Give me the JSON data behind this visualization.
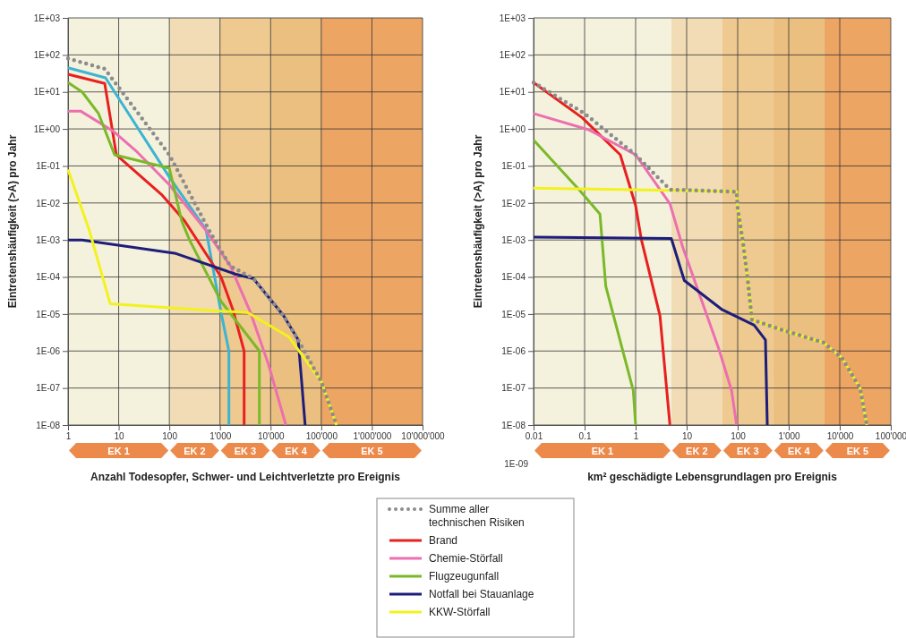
{
  "chart_data": [
    {
      "type": "line",
      "log": "xy",
      "grid": true,
      "legend": "bottom",
      "xlabel": "Anzahl Todesopfer, Schwer- und Leichtverletzte pro Ereignis",
      "ylabel": "Eintretenshäufigkeit (>A) pro Jahr",
      "xlim": [
        1,
        10000000
      ],
      "xticks": [
        1,
        10,
        100,
        {
          "value": 1000,
          "label": "1'000"
        },
        {
          "value": 10000,
          "label": "10'000"
        },
        {
          "value": 100000,
          "label": "100'000"
        },
        {
          "value": 1000000,
          "label": "1'000'000"
        },
        {
          "value": 10000000,
          "label": "10'000'000"
        }
      ],
      "ylim": [
        1e-08,
        1000
      ],
      "yticks": [
        {
          "value": 1000,
          "label": "1E+03"
        },
        {
          "value": 100,
          "label": "1E+02"
        },
        {
          "value": 10,
          "label": "1E+01"
        },
        {
          "value": 1,
          "label": "1E+00"
        },
        {
          "value": 0.1,
          "label": "1E-01"
        },
        {
          "value": 0.01,
          "label": "1E-02"
        },
        {
          "value": 0.001,
          "label": "1E-03"
        },
        {
          "value": 0.0001,
          "label": "1E-04"
        },
        {
          "value": 1e-05,
          "label": "1E-05"
        },
        {
          "value": 1e-06,
          "label": "1E-06"
        },
        {
          "value": 1e-07,
          "label": "1E-07"
        },
        {
          "value": 1e-08,
          "label": "1E-08"
        }
      ],
      "bands": [
        {
          "axis": "x",
          "from": 1,
          "to": 100,
          "label": "EK 1",
          "color": "#f4f2dd"
        },
        {
          "axis": "x",
          "from": 100,
          "to": 1000,
          "label": "EK 2",
          "color": "#f2dcb6"
        },
        {
          "axis": "x",
          "from": 1000,
          "to": 10000,
          "label": "EK 3",
          "color": "#eec990"
        },
        {
          "axis": "x",
          "from": 10000,
          "to": 100000,
          "label": "EK 4",
          "color": "#ebbf7f"
        },
        {
          "axis": "x",
          "from": 100000,
          "to": 10000000,
          "label": "EK 5",
          "color": "#eda563"
        }
      ],
      "series": [
        {
          "color": "#3cb4d2",
          "x": [
            1,
            5.5,
            100,
            530,
            1050,
            1500,
            1500
          ],
          "values": [
            45,
            24,
            0.05,
            0.0019,
            1.1e-05,
            1e-06,
            1e-08
          ]
        },
        {
          "name": "Brand",
          "color": "#e8201f",
          "x": [
            1,
            5.3,
            9,
            70,
            200,
            1050,
            1800,
            3000,
            3000
          ],
          "values": [
            30,
            17,
            0.2,
            0.017,
            0.0033,
            0.0001,
            1.3e-05,
            1e-06,
            1e-08
          ]
        },
        {
          "name": "Chemie-Störfall",
          "color": "#ec6fb0",
          "x": [
            1,
            1.8,
            8,
            23,
            100,
            530,
            1600,
            4000,
            9000,
            20000
          ],
          "values": [
            3,
            3,
            0.85,
            0.24,
            0.031,
            0.0018,
            0.0002,
            1.1e-05,
            4.5e-07,
            1e-08
          ]
        },
        {
          "name": "Flugzeugunfall",
          "color": "#7ab929",
          "x": [
            1,
            1.9,
            4,
            8.3,
            100,
            175,
            250,
            1050,
            6000,
            6000
          ],
          "values": [
            18,
            10,
            2.6,
            0.2,
            0.087,
            0.0033,
            0.001,
            2.2e-05,
            1e-06,
            1e-08
          ]
        },
        {
          "name": "Notfall bei Stauanlage",
          "color": "#1d1d7a",
          "x": [
            1,
            1.9,
            135,
            2000,
            4600,
            18000,
            35000,
            41000,
            48000
          ],
          "values": [
            0.001,
            0.001,
            0.00043,
            0.00012,
            9e-05,
            9e-06,
            2e-06,
            1.5e-07,
            1e-08
          ]
        },
        {
          "name": "KKW-Störfall",
          "color": "#f2f21e",
          "x": [
            1,
            2.6,
            6.8,
            1050,
            3500,
            23000,
            100000,
            200000
          ],
          "values": [
            0.08,
            0.0019,
            1.9e-05,
            1.2e-05,
            1.1e-05,
            2.4e-06,
            1.5e-07,
            1e-08
          ]
        },
        {
          "name": "Summe aller technischen Risiken",
          "color": "#8c8c8c",
          "line_style": "dotted",
          "x": [
            1,
            5.3,
            100,
            600,
            1580,
            4600,
            18000,
            35000,
            100000,
            200000
          ],
          "values": [
            80,
            42,
            0.2,
            0.0019,
            0.0002,
            9e-05,
            9e-06,
            2e-06,
            1.5e-07,
            1e-08
          ]
        }
      ]
    },
    {
      "type": "line",
      "log": "xy",
      "grid": true,
      "xlabel": "km² geschädigte Lebensgrundlagen pro Ereignis",
      "ylabel": "Eintretenshäufigkeit (>A) pro Jahr",
      "annotations": [
        "1E-09"
      ],
      "xlim": [
        0.01,
        100000
      ],
      "xticks": [
        0.01,
        0.1,
        1,
        10,
        100,
        {
          "value": 1000,
          "label": "1'000"
        },
        {
          "value": 10000,
          "label": "10'000"
        },
        {
          "value": 100000,
          "label": "100'000"
        }
      ],
      "ylim": [
        1e-08,
        1000
      ],
      "yticks": [
        {
          "value": 1000,
          "label": "1E+03"
        },
        {
          "value": 100,
          "label": "1E+02"
        },
        {
          "value": 10,
          "label": "1E+01"
        },
        {
          "value": 1,
          "label": "1E+00"
        },
        {
          "value": 0.1,
          "label": "1E-01"
        },
        {
          "value": 0.01,
          "label": "1E-02"
        },
        {
          "value": 0.001,
          "label": "1E-03"
        },
        {
          "value": 0.0001,
          "label": "1E-04"
        },
        {
          "value": 1e-05,
          "label": "1E-05"
        },
        {
          "value": 1e-06,
          "label": "1E-06"
        },
        {
          "value": 1e-07,
          "label": "1E-07"
        },
        {
          "value": 1e-08,
          "label": "1E-08"
        }
      ],
      "bands": [
        {
          "axis": "x",
          "from": 0.01,
          "to": 5,
          "label": "EK 1",
          "color": "#f4f2dd"
        },
        {
          "axis": "x",
          "from": 5,
          "to": 50,
          "label": "EK 2",
          "color": "#f2dcb6"
        },
        {
          "axis": "x",
          "from": 50,
          "to": 500,
          "label": "EK 3",
          "color": "#eec990"
        },
        {
          "axis": "x",
          "from": 500,
          "to": 5000,
          "label": "EK 4",
          "color": "#ebbf7f"
        },
        {
          "axis": "x",
          "from": 5000,
          "to": 100000,
          "label": "EK 5",
          "color": "#eda563"
        }
      ],
      "series": [
        {
          "color": "#e8201f",
          "x": [
            0.01,
            0.09,
            0.5,
            1,
            1.3,
            3,
            4.7
          ],
          "values": [
            18,
            2,
            0.2,
            0.0085,
            0.001,
            9e-06,
            1e-08
          ]
        },
        {
          "color": "#ec6fb0",
          "x": [
            0.01,
            0.12,
            1,
            4.7,
            8.5,
            43,
            76,
            95
          ],
          "values": [
            2.6,
            0.95,
            0.2,
            0.0096,
            0.0006,
            1.1e-06,
            8.5e-08,
            1e-08
          ]
        },
        {
          "color": "#7ab929",
          "x": [
            0.01,
            0.08,
            0.2,
            0.26,
            0.9,
            1
          ],
          "values": [
            0.5,
            0.022,
            0.005,
            5.6e-05,
            8.5e-08,
            1e-08
          ]
        },
        {
          "color": "#1d1d7a",
          "x": [
            0.01,
            5,
            9,
            50,
            210,
            350,
            380
          ],
          "values": [
            0.0012,
            0.0011,
            8e-05,
            1.3e-05,
            5e-06,
            2e-06,
            1e-08
          ]
        },
        {
          "color": "#f2f21e",
          "x": [
            0.01,
            4.7,
            95,
            100,
            125,
            155,
            190,
            850,
            4800,
            11000,
            25000,
            34000
          ],
          "values": [
            0.025,
            0.022,
            0.02,
            0.007,
            0.001,
            0.0001,
            7e-06,
            3.5e-06,
            1.7e-06,
            6.6e-07,
            1e-07,
            1e-08
          ]
        },
        {
          "color": "#8c8c8c",
          "line_style": "dotted",
          "x": [
            0.01,
            0.1,
            1,
            4.7,
            95,
            100,
            125,
            155,
            190,
            850,
            4800,
            11000,
            25000,
            34000
          ],
          "values": [
            18,
            2.6,
            0.2,
            0.023,
            0.02,
            0.007,
            0.001,
            0.0001,
            7e-06,
            3.5e-06,
            1.7e-06,
            6.6e-07,
            1e-07,
            1e-08
          ]
        }
      ]
    }
  ]
}
